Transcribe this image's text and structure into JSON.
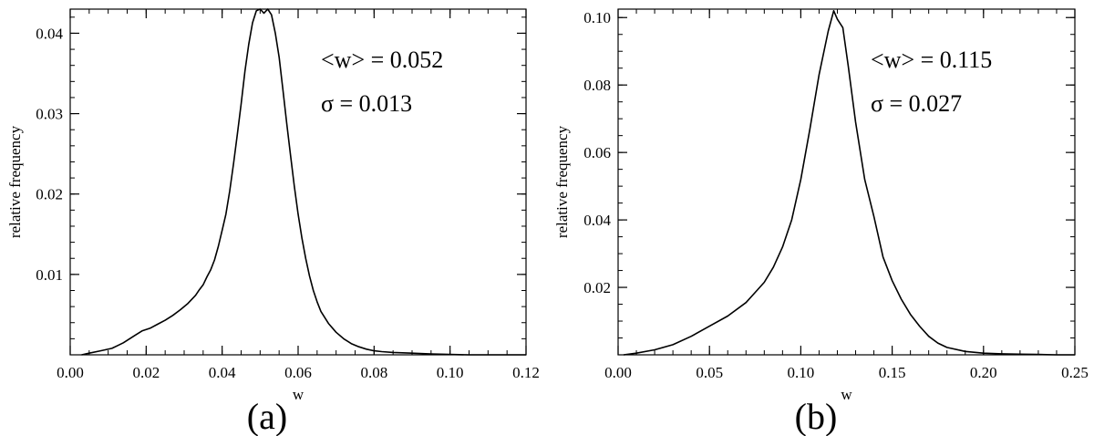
{
  "chart_data": [
    {
      "type": "line",
      "panel_label": "(a)",
      "xlabel": "w",
      "ylabel": "relative frequency",
      "xlim": [
        0.0,
        0.12
      ],
      "ylim": [
        0.0,
        0.043
      ],
      "xticks": [
        0.0,
        0.02,
        0.04,
        0.06,
        0.08,
        0.1,
        0.12
      ],
      "xtick_labels": [
        "0.00",
        "0.02",
        "0.04",
        "0.06",
        "0.08",
        "0.10",
        "0.12"
      ],
      "yticks": [
        0.01,
        0.02,
        0.03,
        0.04
      ],
      "ytick_labels": [
        "0.01",
        "0.02",
        "0.03",
        "0.04"
      ],
      "x_minor_step": 0.005,
      "y_minor_step": 0.002,
      "annotations": [
        "<w> = 0.052",
        "σ = 0.013"
      ],
      "legend": "none",
      "grid": false,
      "series": [
        {
          "x": [
            0.003,
            0.005,
            0.008,
            0.011,
            0.014,
            0.017,
            0.019,
            0.021,
            0.023,
            0.025,
            0.027,
            0.029,
            0.031,
            0.033,
            0.034,
            0.035,
            0.036,
            0.037,
            0.038,
            0.039,
            0.04,
            0.041,
            0.042,
            0.043,
            0.044,
            0.045,
            0.046,
            0.047,
            0.048,
            0.049,
            0.05,
            0.051,
            0.052,
            0.053,
            0.054,
            0.055,
            0.056,
            0.057,
            0.058,
            0.059,
            0.06,
            0.061,
            0.062,
            0.063,
            0.064,
            0.065,
            0.066,
            0.068,
            0.07,
            0.072,
            0.074,
            0.076,
            0.078,
            0.08,
            0.082,
            0.085,
            0.09,
            0.095,
            0.1,
            0.105,
            0.11,
            0.115,
            0.12
          ],
          "y": [
            0.0,
            0.0002,
            0.0005,
            0.0008,
            0.0015,
            0.0024,
            0.003,
            0.0033,
            0.0038,
            0.0043,
            0.0049,
            0.0056,
            0.0064,
            0.0074,
            0.0081,
            0.0087,
            0.0097,
            0.0106,
            0.0118,
            0.0135,
            0.0155,
            0.0175,
            0.0204,
            0.0238,
            0.0274,
            0.0312,
            0.0353,
            0.0386,
            0.0413,
            0.0428,
            0.043,
            0.0425,
            0.043,
            0.0423,
            0.04,
            0.037,
            0.033,
            0.0288,
            0.0248,
            0.021,
            0.0175,
            0.0145,
            0.012,
            0.0098,
            0.008,
            0.0066,
            0.0054,
            0.0039,
            0.0028,
            0.002,
            0.0014,
            0.001,
            0.0007,
            0.0005,
            0.0004,
            0.0003,
            0.0002,
            0.0001,
            5e-05,
            0.0,
            0.0,
            0.0,
            0.0
          ]
        }
      ]
    },
    {
      "type": "line",
      "panel_label": "(b)",
      "xlabel": "w",
      "ylabel": "relative frequency",
      "xlim": [
        0.0,
        0.25
      ],
      "ylim": [
        0.0,
        0.1025
      ],
      "xticks": [
        0.0,
        0.05,
        0.1,
        0.15,
        0.2,
        0.25
      ],
      "xtick_labels": [
        "0.00",
        "0.05",
        "0.10",
        "0.15",
        "0.20",
        "0.25"
      ],
      "yticks": [
        0.02,
        0.04,
        0.06,
        0.08,
        0.1
      ],
      "ytick_labels": [
        "0.02",
        "0.04",
        "0.06",
        "0.08",
        "0.10"
      ],
      "x_minor_step": 0.01,
      "y_minor_step": 0.005,
      "annotations": [
        "<w> = 0.115",
        "σ = 0.027"
      ],
      "legend": "none",
      "grid": false,
      "series": [
        {
          "x": [
            0.003,
            0.01,
            0.02,
            0.03,
            0.04,
            0.05,
            0.06,
            0.07,
            0.075,
            0.08,
            0.085,
            0.09,
            0.095,
            0.1,
            0.105,
            0.11,
            0.115,
            0.118,
            0.12,
            0.123,
            0.126,
            0.13,
            0.135,
            0.14,
            0.145,
            0.15,
            0.155,
            0.16,
            0.165,
            0.17,
            0.175,
            0.18,
            0.19,
            0.2,
            0.21,
            0.22,
            0.23,
            0.24,
            0.25
          ],
          "y": [
            0.0,
            0.0005,
            0.0015,
            0.003,
            0.0055,
            0.0085,
            0.0115,
            0.0155,
            0.0185,
            0.0215,
            0.026,
            0.032,
            0.04,
            0.052,
            0.067,
            0.083,
            0.096,
            0.102,
            0.0995,
            0.097,
            0.0855,
            0.069,
            0.052,
            0.041,
            0.029,
            0.022,
            0.0165,
            0.012,
            0.0085,
            0.0055,
            0.0035,
            0.0022,
            0.001,
            0.0005,
            0.0003,
            0.0002,
            0.0001,
            0.0,
            0.0
          ]
        }
      ]
    }
  ]
}
